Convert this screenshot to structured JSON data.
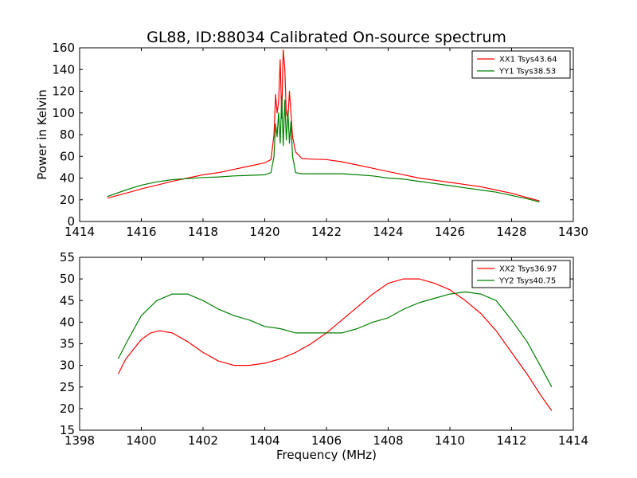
{
  "chart_data": [
    {
      "type": "line",
      "title": "GL88, ID:88034 Calibrated On-source spectrum",
      "xlabel": "",
      "ylabel": "Power in Kelvin",
      "xlim": [
        1414,
        1430
      ],
      "ylim": [
        0,
        160
      ],
      "xticks": [
        "1414",
        "1416",
        "1418",
        "1420",
        "1422",
        "1424",
        "1426",
        "1428",
        "1430"
      ],
      "yticks": [
        "0",
        "20",
        "40",
        "60",
        "80",
        "100",
        "120",
        "140",
        "160"
      ],
      "grid": false,
      "legend_position": "top-right",
      "series": [
        {
          "name": "XX1 Tsys43.64",
          "color": "#ff0000",
          "x": [
            1414.9,
            1415.5,
            1416.0,
            1416.5,
            1417.0,
            1417.5,
            1418.0,
            1418.5,
            1419.0,
            1419.5,
            1420.0,
            1420.2,
            1420.3,
            1420.35,
            1420.4,
            1420.45,
            1420.5,
            1420.55,
            1420.6,
            1420.65,
            1420.7,
            1420.75,
            1420.8,
            1420.85,
            1420.9,
            1421.0,
            1421.2,
            1421.5,
            1422.0,
            1422.5,
            1423.0,
            1423.5,
            1424.0,
            1424.5,
            1425.0,
            1425.5,
            1426.0,
            1426.5,
            1427.0,
            1427.5,
            1428.0,
            1428.5,
            1428.9
          ],
          "y": [
            21.5,
            26,
            30,
            33.5,
            37,
            40,
            43,
            45,
            48,
            51,
            54,
            57,
            80,
            117,
            100,
            110,
            149,
            95,
            158,
            140,
            100,
            95,
            120,
            100,
            78,
            64,
            58,
            57.5,
            57,
            55,
            52,
            49,
            46,
            43,
            40,
            38,
            36,
            34,
            32,
            29,
            26,
            22,
            19
          ]
        },
        {
          "name": "YY1 Tsys38.53",
          "color": "#008000",
          "x": [
            1414.9,
            1415.5,
            1416.0,
            1416.5,
            1417.0,
            1417.5,
            1418.0,
            1418.5,
            1419.0,
            1419.5,
            1420.0,
            1420.2,
            1420.3,
            1420.35,
            1420.4,
            1420.45,
            1420.5,
            1420.55,
            1420.6,
            1420.65,
            1420.7,
            1420.75,
            1420.8,
            1420.85,
            1420.9,
            1421.0,
            1421.2,
            1421.5,
            1422.0,
            1422.5,
            1423.0,
            1423.5,
            1424.0,
            1424.5,
            1425.0,
            1425.5,
            1426.0,
            1426.5,
            1427.0,
            1427.5,
            1428.0,
            1428.5,
            1428.9
          ],
          "y": [
            23,
            29,
            33.5,
            36.5,
            38.5,
            39.5,
            40.5,
            41,
            42,
            42.5,
            43,
            45,
            60,
            90,
            78,
            100,
            72,
            115,
            70,
            112,
            75,
            102,
            72,
            92,
            60,
            45,
            44,
            44,
            44,
            44,
            43,
            42,
            40,
            39,
            37,
            35,
            33,
            31,
            29,
            27,
            24,
            21,
            18
          ]
        }
      ]
    },
    {
      "type": "line",
      "title": "",
      "xlabel": "Frequency (MHz)",
      "ylabel": "",
      "xlim": [
        1398,
        1414
      ],
      "ylim": [
        15,
        55
      ],
      "xticks": [
        "1398",
        "1400",
        "1402",
        "1404",
        "1406",
        "1408",
        "1410",
        "1412",
        "1414"
      ],
      "yticks": [
        "15",
        "20",
        "25",
        "30",
        "35",
        "40",
        "45",
        "50",
        "55"
      ],
      "grid": false,
      "legend_position": "top-right",
      "series": [
        {
          "name": "XX2 Tsys36.97",
          "color": "#ff0000",
          "x": [
            1399.25,
            1399.5,
            1400.0,
            1400.3,
            1400.6,
            1401.0,
            1401.5,
            1402.0,
            1402.5,
            1403.0,
            1403.5,
            1404.0,
            1404.5,
            1405.0,
            1405.5,
            1406.0,
            1406.5,
            1407.0,
            1407.5,
            1408.0,
            1408.5,
            1409.0,
            1409.5,
            1410.0,
            1410.5,
            1411.0,
            1411.5,
            1412.0,
            1412.5,
            1413.0,
            1413.3
          ],
          "y": [
            28,
            31.5,
            36,
            37.5,
            38,
            37.5,
            35.5,
            33,
            31,
            30,
            30,
            30.5,
            31.5,
            33,
            35,
            37.5,
            40.5,
            43.5,
            46.5,
            49,
            50,
            50,
            49,
            47.5,
            45,
            42,
            38,
            33,
            28,
            22.5,
            19.5
          ]
        },
        {
          "name": "YY2 Tsys40.75",
          "color": "#008000",
          "x": [
            1399.25,
            1399.5,
            1400.0,
            1400.5,
            1401.0,
            1401.5,
            1402.0,
            1402.5,
            1403.0,
            1403.5,
            1404.0,
            1404.5,
            1405.0,
            1405.5,
            1406.0,
            1406.5,
            1407.0,
            1407.5,
            1408.0,
            1408.5,
            1409.0,
            1409.5,
            1410.0,
            1410.5,
            1411.0,
            1411.5,
            1412.0,
            1412.5,
            1413.0,
            1413.3
          ],
          "y": [
            31.5,
            35,
            41.5,
            45,
            46.5,
            46.5,
            45,
            43,
            41.5,
            40.5,
            39,
            38.5,
            37.5,
            37.5,
            37.5,
            37.5,
            38.5,
            40,
            41,
            43,
            44.5,
            45.5,
            46.5,
            47,
            46.5,
            45,
            40.5,
            35.5,
            29,
            25
          ]
        }
      ]
    }
  ]
}
